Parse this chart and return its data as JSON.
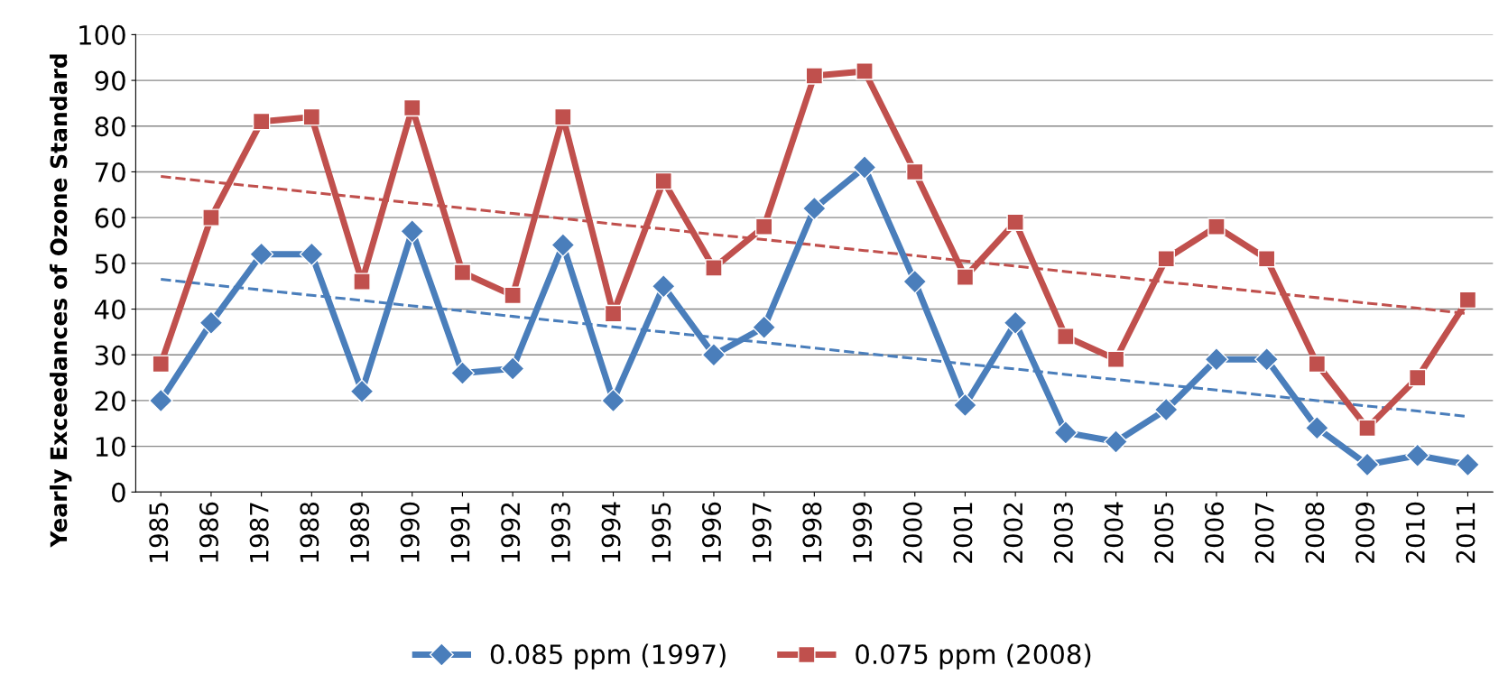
{
  "chart_data": {
    "type": "line",
    "ylabel": "Yearly Exceedances of Ozone Standard",
    "categories": [
      "1985",
      "1986",
      "1987",
      "1988",
      "1989",
      "1990",
      "1991",
      "1992",
      "1993",
      "1994",
      "1995",
      "1996",
      "1997",
      "1998",
      "1999",
      "2000",
      "2001",
      "2002",
      "2003",
      "2004",
      "2005",
      "2006",
      "2007",
      "2008",
      "2009",
      "2010",
      "2011"
    ],
    "series": [
      {
        "name": "0.085 ppm (1997)",
        "color": "#4a7ebb",
        "marker": "diamond",
        "values": [
          20,
          37,
          52,
          52,
          22,
          57,
          26,
          27,
          54,
          20,
          45,
          30,
          36,
          62,
          71,
          46,
          19,
          37,
          13,
          11,
          18,
          29,
          29,
          14,
          6,
          8,
          6
        ]
      },
      {
        "name": "0.075 ppm (2008)",
        "color": "#c0504d",
        "marker": "square",
        "values": [
          28,
          60,
          81,
          82,
          46,
          84,
          48,
          43,
          82,
          39,
          68,
          49,
          58,
          91,
          92,
          70,
          47,
          59,
          34,
          29,
          51,
          58,
          51,
          28,
          14,
          25,
          42
        ]
      },
      {
        "color": "#4a7ebb",
        "line_style": "dashed",
        "marker": "none",
        "values": [
          46.5,
          45.3,
          44.2,
          43.0,
          41.9,
          40.7,
          39.6,
          38.4,
          37.3,
          36.1,
          35.0,
          33.8,
          32.7,
          31.5,
          30.3,
          29.2,
          28.0,
          26.9,
          25.7,
          24.6,
          23.4,
          22.3,
          21.1,
          20.0,
          18.8,
          17.7,
          16.5
        ]
      },
      {
        "color": "#c0504d",
        "line_style": "dashed",
        "marker": "none",
        "values": [
          69.0,
          67.8,
          66.7,
          65.5,
          64.4,
          63.2,
          62.1,
          60.9,
          59.8,
          58.6,
          57.5,
          56.3,
          55.2,
          54.0,
          52.8,
          51.7,
          50.5,
          49.4,
          48.2,
          47.1,
          45.9,
          44.8,
          43.6,
          42.5,
          41.3,
          40.2,
          39.0
        ]
      }
    ],
    "ylim": [
      0,
      100
    ],
    "yticks": [
      0,
      10,
      20,
      30,
      40,
      50,
      60,
      70,
      80,
      90,
      100
    ],
    "grid": "y",
    "legend": "bottom"
  }
}
